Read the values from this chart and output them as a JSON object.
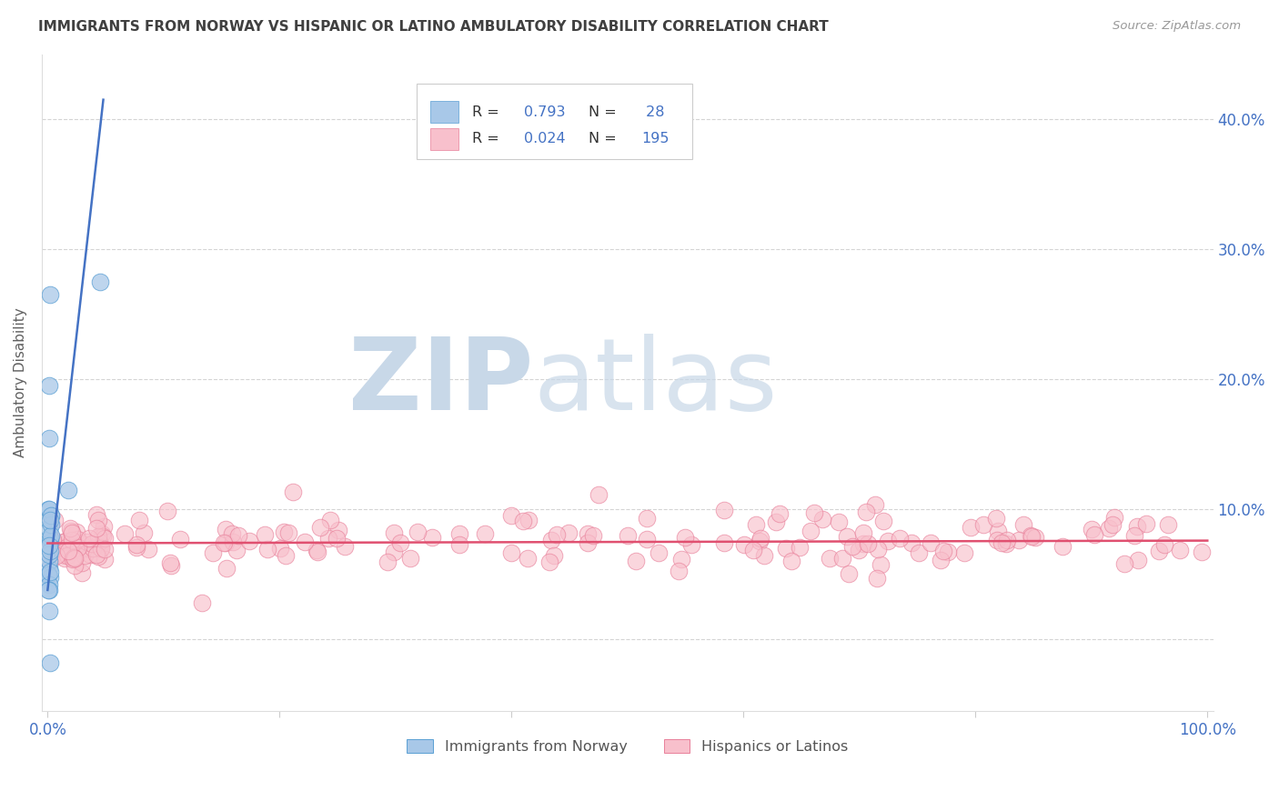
{
  "title": "IMMIGRANTS FROM NORWAY VS HISPANIC OR LATINO AMBULATORY DISABILITY CORRELATION CHART",
  "source": "Source: ZipAtlas.com",
  "ylabel": "Ambulatory Disability",
  "xlim": [
    -0.005,
    1.005
  ],
  "ylim": [
    -0.055,
    0.45
  ],
  "yticks": [
    0.0,
    0.1,
    0.2,
    0.3,
    0.4
  ],
  "ytick_labels": [
    "",
    "10.0%",
    "20.0%",
    "30.0%",
    "40.0%"
  ],
  "xticks": [
    0.0,
    0.2,
    0.4,
    0.6,
    0.8,
    1.0
  ],
  "xtick_labels": [
    "0.0%",
    "",
    "",
    "",
    "",
    "100.0%"
  ],
  "blue_R": 0.793,
  "blue_N": 28,
  "pink_R": 0.024,
  "pink_N": 195,
  "blue_color": "#a8c8e8",
  "blue_edge_color": "#5a9fd4",
  "blue_line_color": "#4472c4",
  "pink_color": "#f8c0cc",
  "pink_edge_color": "#e8809a",
  "pink_line_color": "#e05070",
  "background_color": "#ffffff",
  "grid_color": "#d0d0d0",
  "title_color": "#404040",
  "axis_label_color": "#606060",
  "tick_label_color": "#4472c4",
  "stats_text_color": "#333333",
  "legend_label_blue": "Immigrants from Norway",
  "legend_label_pink": "Hispanics or Latinos",
  "blue_scatter_x": [
    0.001,
    0.002,
    0.001,
    0.0005,
    0.002,
    0.003,
    0.0015,
    0.0025,
    0.002,
    0.001,
    0.0005,
    0.001,
    0.002,
    0.003,
    0.001,
    0.002,
    0.0015,
    0.003,
    0.002,
    0.001,
    0.001,
    0.0015,
    0.001,
    0.0005,
    0.002,
    0.002,
    0.045,
    0.018
  ],
  "blue_scatter_y": [
    0.055,
    0.075,
    0.085,
    0.1,
    0.078,
    0.095,
    0.1,
    0.088,
    0.048,
    0.06,
    0.05,
    0.065,
    0.068,
    0.08,
    0.195,
    0.265,
    0.155,
    0.095,
    0.092,
    0.072,
    0.042,
    0.022,
    0.038,
    0.038,
    0.052,
    -0.018,
    0.275,
    0.115
  ],
  "blue_trend_x": [
    0.0,
    0.048
  ],
  "blue_trend_y": [
    0.038,
    0.415
  ],
  "pink_trend_x": [
    0.0,
    1.0
  ],
  "pink_trend_y": [
    0.074,
    0.076
  ],
  "zip_color": "#c8d8e8",
  "atlas_color": "#c8d8e8"
}
